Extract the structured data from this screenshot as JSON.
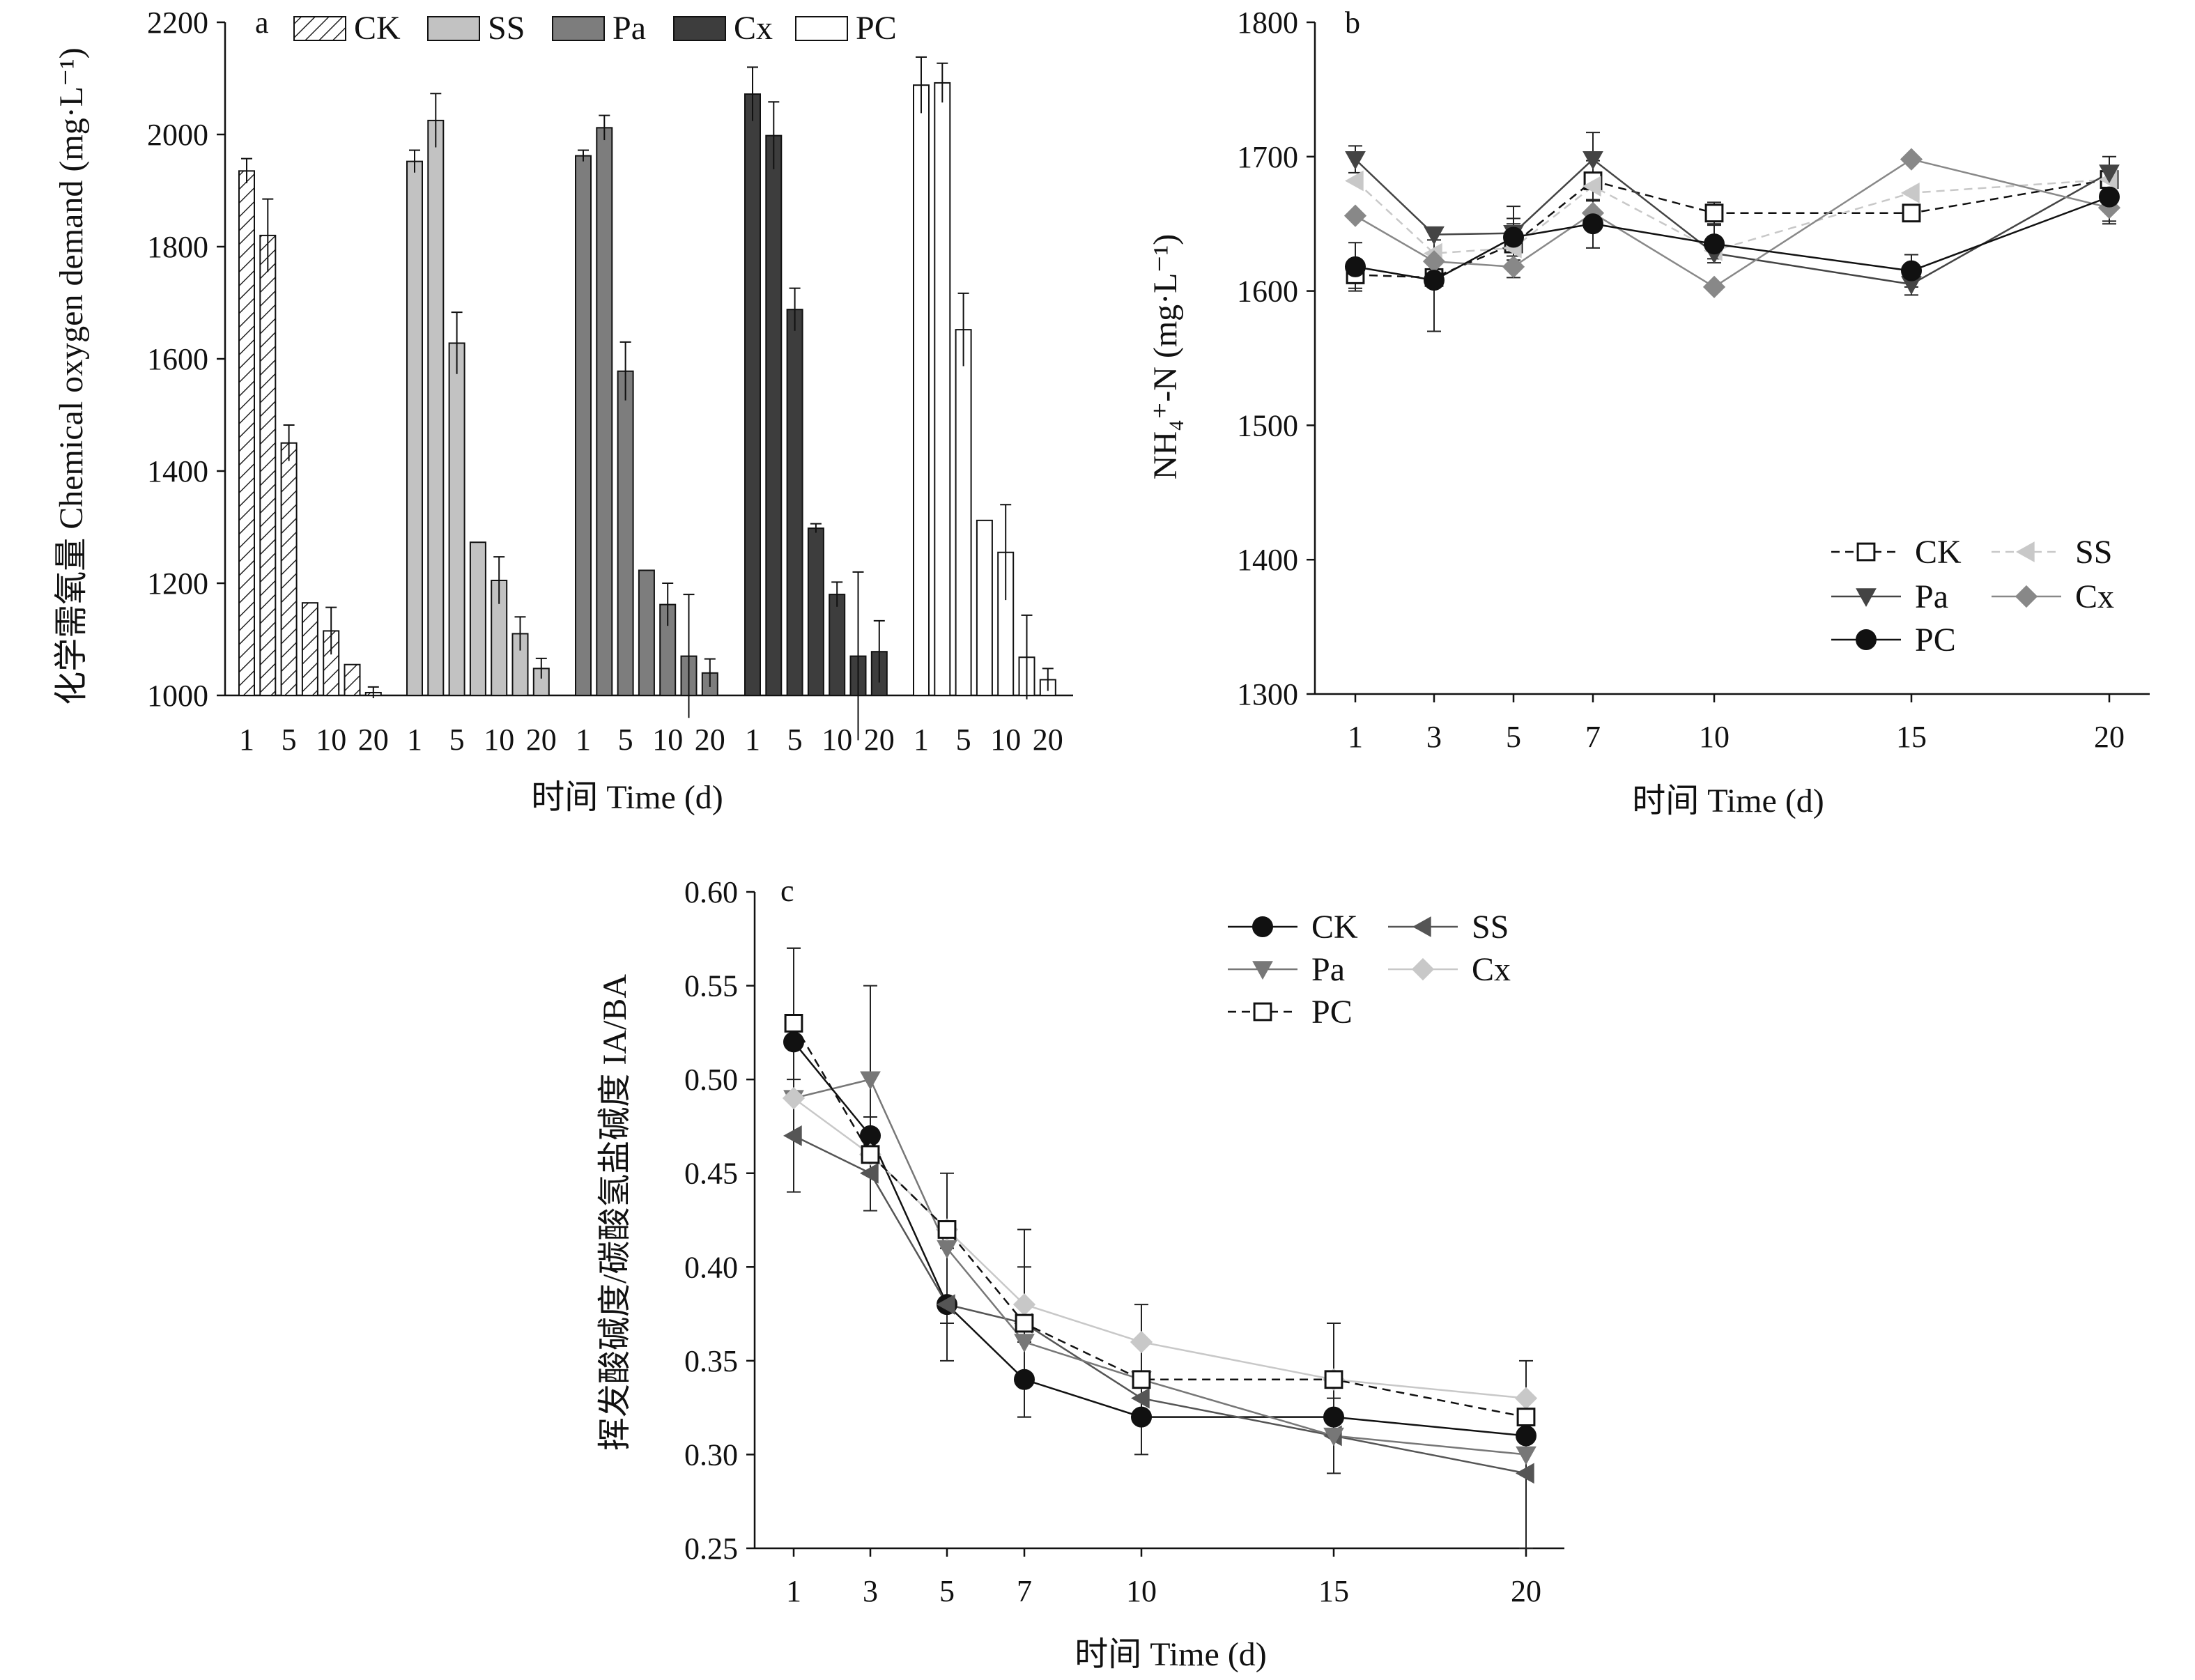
{
  "figure": {
    "charts": [
      {
        "id": "a",
        "letter": "a",
        "ylabel": "化学需氧量 Chemical oxygen demand (mg·L⁻¹)",
        "xlabel": "时间 Time (d)"
      },
      {
        "id": "b",
        "letter": "b",
        "ylabel": "NH₄⁺-N (mg·L⁻¹)",
        "xlabel": "时间 Time (d)"
      },
      {
        "id": "c",
        "letter": "c",
        "ylabel": "挥发酸碱度/碳酸氢盐碱度 IA/BA",
        "xlabel": "时间 Time (d)"
      }
    ]
  },
  "chart_data": [
    {
      "panel": "a",
      "type": "bar",
      "title": "",
      "xlabel": "时间 Time (d)",
      "ylabel": "化学需氧量 Chemical oxygen demand (mg·L⁻¹)",
      "ylim": [
        1000,
        2200
      ],
      "yticks": [
        1000,
        1200,
        1400,
        1600,
        1800,
        2000,
        2200
      ],
      "days": [
        1,
        3,
        5,
        7,
        10,
        15,
        20
      ],
      "day_tick_labels": [
        "1",
        "5",
        "10",
        "20"
      ],
      "legend_position": "top",
      "grid": false,
      "series": [
        {
          "name": "CK",
          "fill": "hatch",
          "color": "#ffffff",
          "values": [
            1935,
            1820,
            1450,
            1165,
            1115,
            1055,
            1005
          ],
          "errors": [
            22,
            65,
            32,
            0,
            42,
            0,
            10
          ]
        },
        {
          "name": "SS",
          "fill": "solid",
          "color": "#c2c2c2",
          "values": [
            1952,
            2025,
            1628,
            1273,
            1205,
            1110,
            1048
          ],
          "errors": [
            20,
            48,
            55,
            0,
            42,
            30,
            18
          ]
        },
        {
          "name": "Pa",
          "fill": "solid",
          "color": "#7d7d7d",
          "values": [
            1962,
            2012,
            1578,
            1223,
            1162,
            1070,
            1040
          ],
          "errors": [
            10,
            22,
            52,
            0,
            38,
            110,
            25
          ]
        },
        {
          "name": "Cx",
          "fill": "solid",
          "color": "#3d3d3d",
          "values": [
            2072,
            1998,
            1688,
            1298,
            1180,
            1070,
            1078
          ],
          "errors": [
            48,
            60,
            38,
            8,
            22,
            150,
            55
          ]
        },
        {
          "name": "PC",
          "fill": "solid",
          "color": "#ffffff",
          "values": [
            2088,
            2092,
            1652,
            1312,
            1255,
            1068,
            1028
          ],
          "errors": [
            50,
            35,
            65,
            0,
            85,
            75,
            20
          ]
        }
      ]
    },
    {
      "panel": "b",
      "type": "line",
      "title": "",
      "xlabel": "时间 Time (d)",
      "ylabel": "NH₄⁺-N (mg·L⁻¹)",
      "x": [
        1,
        3,
        5,
        7,
        10,
        15,
        20
      ],
      "xticks": [
        1,
        3,
        5,
        7,
        10,
        15,
        20
      ],
      "ylim": [
        1300,
        1800
      ],
      "yticks": [
        1300,
        1400,
        1500,
        1600,
        1700,
        1800
      ],
      "legend_position": "bottom-right",
      "grid": false,
      "series": [
        {
          "name": "CK",
          "marker": "square-open",
          "line": "dashed",
          "color": "#333333",
          "values": [
            1612,
            1610,
            1635,
            1682,
            1658,
            1658,
            1683
          ],
          "errors": [
            10,
            6,
            15,
            15,
            8,
            6,
            10
          ]
        },
        {
          "name": "SS",
          "marker": "triangle-left",
          "line": "dashed",
          "color": "#c8c8c8",
          "values": [
            1682,
            1628,
            1632,
            1678,
            1630,
            1673,
            1683
          ],
          "errors": [
            0,
            0,
            0,
            0,
            0,
            0,
            0
          ]
        },
        {
          "name": "Pa",
          "marker": "triangle-down",
          "line": "solid",
          "color": "#444444",
          "values": [
            1698,
            1642,
            1643,
            1698,
            1628,
            1605,
            1688
          ],
          "errors": [
            10,
            4,
            20,
            20,
            4,
            8,
            12
          ]
        },
        {
          "name": "Cx",
          "marker": "diamond",
          "line": "solid",
          "color": "#888888",
          "values": [
            1656,
            1622,
            1618,
            1658,
            1603,
            1698,
            1662
          ],
          "errors": [
            0,
            0,
            8,
            0,
            0,
            0,
            12
          ]
        },
        {
          "name": "PC",
          "marker": "circle",
          "line": "solid",
          "color": "#111111",
          "values": [
            1618,
            1608,
            1640,
            1650,
            1635,
            1615,
            1670
          ],
          "errors": [
            18,
            38,
            14,
            18,
            14,
            12,
            18
          ]
        }
      ]
    },
    {
      "panel": "c",
      "type": "line",
      "title": "",
      "xlabel": "时间 Time (d)",
      "ylabel": "挥发酸碱度/碳酸氢盐碱度 IA/BA",
      "x": [
        1,
        3,
        5,
        7,
        10,
        15,
        20
      ],
      "xticks": [
        1,
        3,
        5,
        7,
        10,
        15,
        20
      ],
      "ylim": [
        0.25,
        0.6
      ],
      "yticks": [
        0.25,
        0.3,
        0.35,
        0.4,
        0.45,
        0.5,
        0.55,
        0.6
      ],
      "legend_position": "top-right",
      "grid": false,
      "series": [
        {
          "name": "CK",
          "marker": "circle",
          "line": "solid",
          "color": "#111111",
          "values": [
            0.52,
            0.47,
            0.38,
            0.34,
            0.32,
            0.32,
            0.31
          ],
          "errors": [
            0.05,
            0.01,
            0.0,
            0.02,
            0.02,
            0.0,
            0.0
          ]
        },
        {
          "name": "SS",
          "marker": "triangle-left",
          "line": "solid",
          "color": "#555555",
          "values": [
            0.47,
            0.45,
            0.38,
            0.37,
            0.33,
            0.31,
            0.29
          ],
          "errors": [
            0.03,
            0.02,
            0.03,
            0.0,
            0.0,
            0.02,
            0.04
          ]
        },
        {
          "name": "Pa",
          "marker": "triangle-down",
          "line": "solid",
          "color": "#777777",
          "values": [
            0.49,
            0.5,
            0.41,
            0.36,
            0.34,
            0.31,
            0.3
          ],
          "errors": [
            0.0,
            0.05,
            0.04,
            0.02,
            0.0,
            0.0,
            0.0
          ]
        },
        {
          "name": "Cx",
          "marker": "diamond",
          "line": "solid",
          "color": "#c8c8c8",
          "values": [
            0.49,
            0.46,
            0.42,
            0.38,
            0.36,
            0.34,
            0.33
          ],
          "errors": [
            0.0,
            0.0,
            0.0,
            0.02,
            0.02,
            0.0,
            0.02
          ]
        },
        {
          "name": "PC",
          "marker": "square-open",
          "line": "dashed",
          "color": "#111111",
          "values": [
            0.53,
            0.46,
            0.42,
            0.37,
            0.34,
            0.34,
            0.32
          ],
          "errors": [
            0.04,
            0.0,
            0.0,
            0.05,
            0.0,
            0.03,
            0.0
          ]
        }
      ]
    }
  ]
}
